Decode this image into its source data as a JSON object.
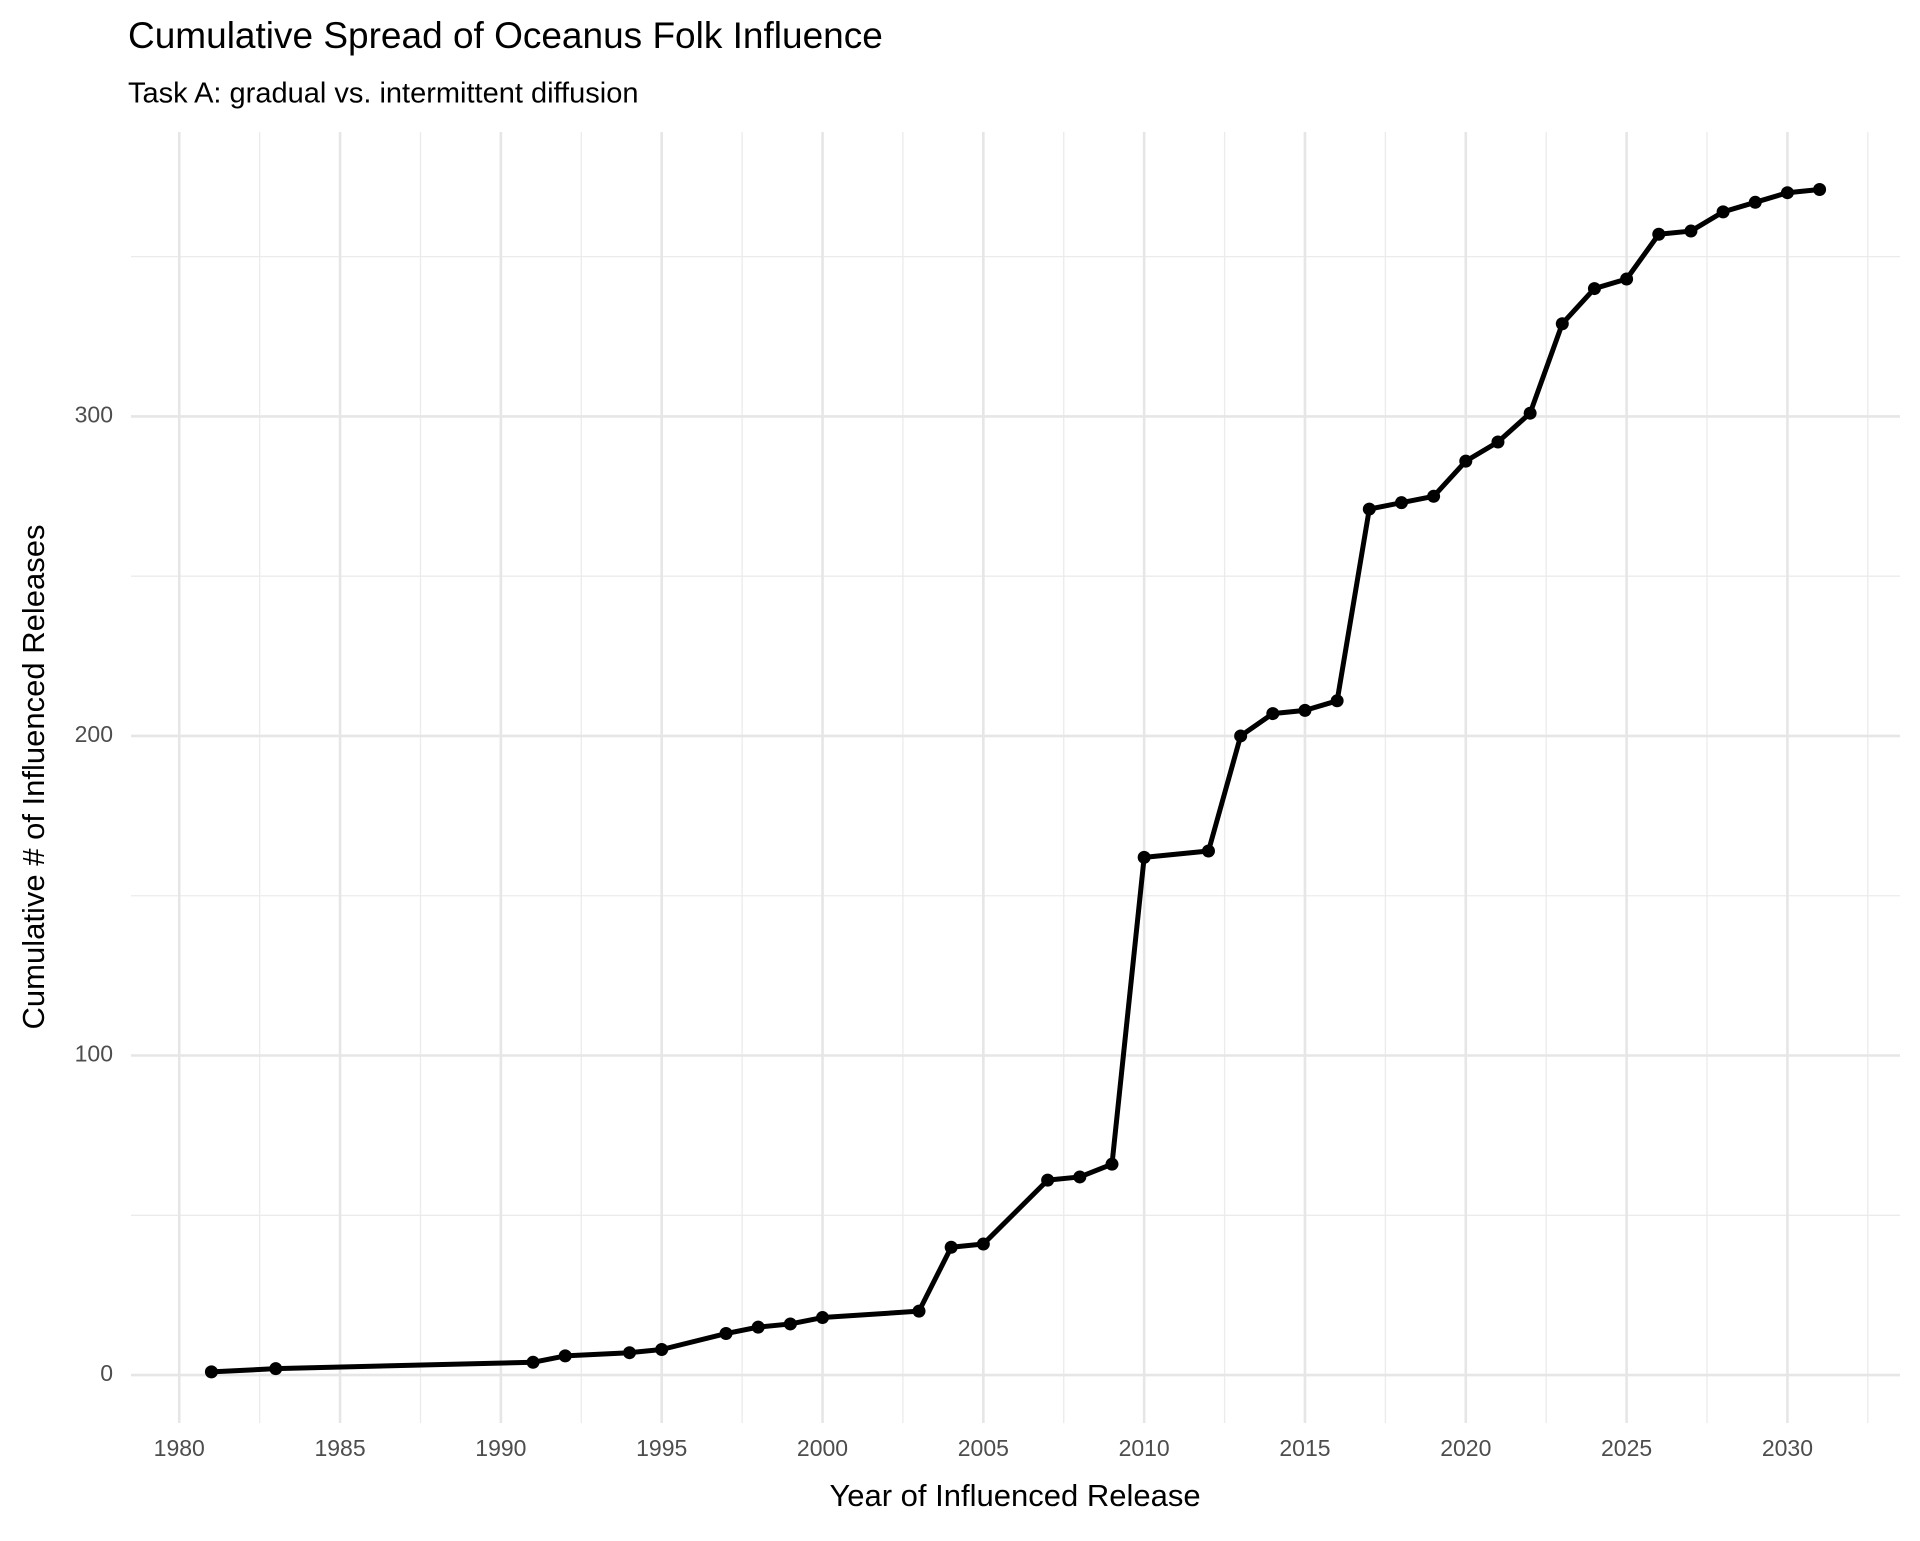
{
  "chart_data": {
    "type": "line",
    "title": "Cumulative Spread of Oceanus Folk Influence",
    "subtitle": "Task A: gradual vs. intermittent diffusion",
    "x_label": "Year of Influenced Release",
    "y_label": "Cumulative # of Influenced Releases",
    "x": [
      1981,
      1983,
      1991,
      1992,
      1994,
      1995,
      1997,
      1998,
      1999,
      2000,
      2003,
      2004,
      2005,
      2007,
      2008,
      2009,
      2010,
      2012,
      2013,
      2014,
      2015,
      2016,
      2017,
      2018,
      2019,
      2020,
      2021,
      2022,
      2023,
      2024,
      2025,
      2026,
      2027,
      2028,
      2029,
      2030,
      2031
    ],
    "series": [
      {
        "color": "#000000",
        "values": [
          1,
          2,
          4,
          6,
          7,
          8,
          13,
          15,
          16,
          18,
          20,
          40,
          41,
          61,
          62,
          66,
          162,
          164,
          200,
          207,
          208,
          211,
          271,
          273,
          275,
          286,
          292,
          301,
          329,
          340,
          343,
          357,
          358,
          364,
          367,
          370,
          371
        ]
      }
    ],
    "xlim": [
      1978.5,
      2033.5
    ],
    "ylim": [
      -15,
      389
    ],
    "xticks": [
      1980,
      1985,
      1990,
      1995,
      2000,
      2005,
      2010,
      2015,
      2020,
      2025,
      2030
    ],
    "yticks": [
      0,
      100,
      200,
      300
    ],
    "grid": true
  }
}
